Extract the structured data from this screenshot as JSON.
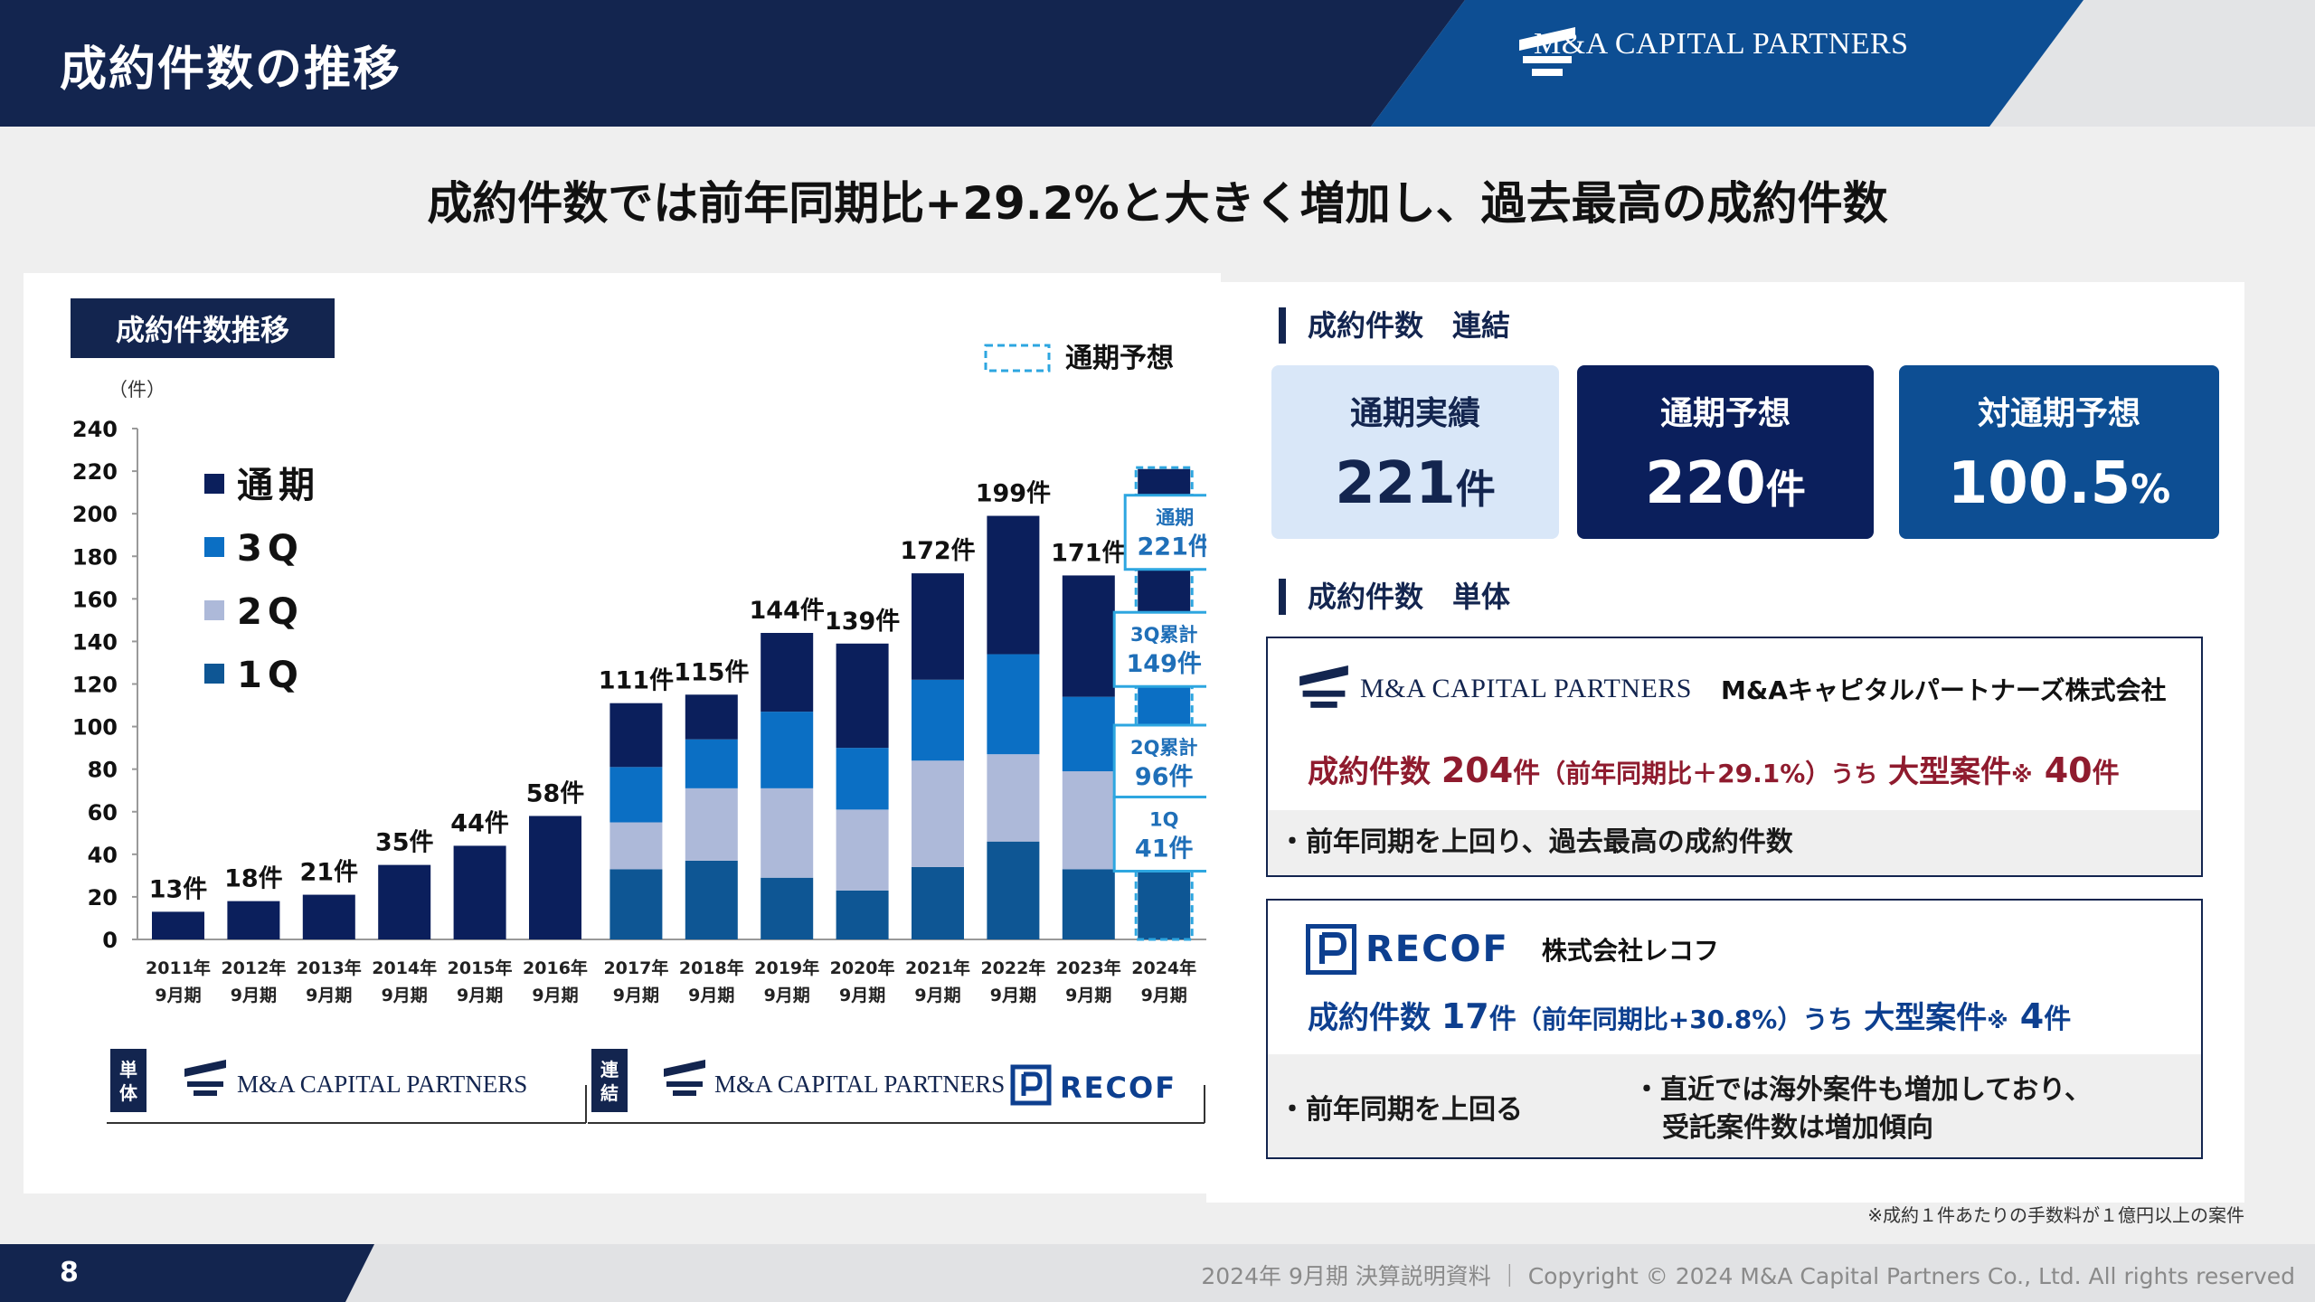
{
  "header": {
    "title": "成約件数の推移",
    "logo_text": "M&A CAPITAL PARTNERS"
  },
  "headline": "成約件数では前年同期比+29.2%と大きく増加し、過去最高の成約件数",
  "left": {
    "tag": "成約件数推移",
    "legend_forecast": "通期予想",
    "unit": "（件）",
    "legend": [
      "通期",
      "3Q",
      "2Q",
      "1Q"
    ],
    "bottom_single": "単体",
    "bottom_consolidated": "連結",
    "bottom_logo_mcp": "M&A CAPITAL PARTNERS",
    "bottom_logo_recof": "RECOF"
  },
  "chart_data": {
    "type": "bar",
    "stacked": true,
    "categories": [
      "2011年9月期",
      "2012年9月期",
      "2013年9月期",
      "2014年9月期",
      "2015年9月期",
      "2016年9月期",
      "2017年9月期",
      "2018年9月期",
      "2019年9月期",
      "2020年9月期",
      "2021年9月期",
      "2022年9月期",
      "2023年9月期",
      "2024年9月期"
    ],
    "cat_year": [
      "2011年",
      "2012年",
      "2013年",
      "2014年",
      "2015年",
      "2016年",
      "2017年",
      "2018年",
      "2019年",
      "2020年",
      "2021年",
      "2022年",
      "2023年",
      "2024年"
    ],
    "cat_period": [
      "9月期",
      "9月期",
      "9月期",
      "9月期",
      "9月期",
      "9月期",
      "9月期",
      "9月期",
      "9月期",
      "9月期",
      "9月期",
      "9月期",
      "9月期",
      "9月期"
    ],
    "series": [
      {
        "name": "1Q",
        "color": "#0e5694",
        "values": [
          0,
          0,
          0,
          0,
          0,
          0,
          33,
          37,
          29,
          23,
          34,
          46,
          33,
          41
        ]
      },
      {
        "name": "2Q",
        "color": "#adb9d9",
        "values": [
          0,
          0,
          0,
          0,
          0,
          0,
          22,
          34,
          42,
          38,
          50,
          41,
          46,
          55
        ]
      },
      {
        "name": "3Q",
        "color": "#0b6fc4",
        "values": [
          0,
          0,
          0,
          0,
          0,
          0,
          26,
          23,
          36,
          29,
          38,
          47,
          35,
          53
        ]
      },
      {
        "name": "通期",
        "color": "#0b1f5c",
        "values": [
          13,
          18,
          21,
          35,
          44,
          58,
          30,
          21,
          37,
          49,
          50,
          65,
          57,
          72
        ]
      }
    ],
    "totals": [
      13,
      18,
      21,
      35,
      44,
      58,
      111,
      115,
      144,
      139,
      172,
      199,
      171,
      221
    ],
    "total_labels": [
      "13件",
      "18件",
      "21件",
      "35件",
      "44件",
      "58件",
      "111件",
      "115件",
      "144件",
      "139件",
      "172件",
      "199件",
      "171件",
      ""
    ],
    "forecast": 220,
    "ylim": [
      0,
      240
    ],
    "yticks": [
      0,
      20,
      40,
      60,
      80,
      100,
      120,
      140,
      160,
      180,
      200,
      220,
      240
    ],
    "callouts": [
      {
        "t1": "通期",
        "t2": "221件"
      },
      {
        "t1": "3Q累計",
        "t2": "149件"
      },
      {
        "t1": "2Q累計",
        "t2": "96件"
      },
      {
        "t1": "1Q",
        "t2": "41件"
      }
    ]
  },
  "right": {
    "sec1": "成約件数　連結",
    "cards": [
      {
        "label": "通期実績",
        "value": "221",
        "unit": "件"
      },
      {
        "label": "通期予想",
        "value": "220",
        "unit": "件"
      },
      {
        "label": "対通期予想",
        "value": "100.5",
        "unit": "%"
      }
    ],
    "sec2": "成約件数　単体",
    "mcp": {
      "company": "M&Aキャピタルパートナーズ株式会社",
      "l_a": "成約件数 ",
      "l_b": "204",
      "l_c": "件",
      "l_d": "（前年同期比＋29.1%）",
      "l_e": "うち",
      "l_f": " 大型案件",
      "l_g": "※",
      "l_h": " 40",
      "l_i": "件",
      "bullet": "・前年同期を上回り、過去最高の成約件数"
    },
    "recof": {
      "logo": "RECOF",
      "company": "株式会社レコフ",
      "l_a": "成約件数 ",
      "l_b": "17",
      "l_c": "件",
      "l_d": "（前年同期比+30.8%）",
      "l_e": "うち",
      "l_f": " 大型案件",
      "l_g": "※",
      "l_h": " 4",
      "l_i": "件",
      "b1": "・前年同期を上回る",
      "b2a": "・直近では海外案件も増加しており、",
      "b2b": "受託案件数は増加傾向"
    }
  },
  "note": "※成約１件あたりの手数料が１億円以上の案件",
  "footer": {
    "page": "8",
    "copyright": "2024年 9月期 決算説明資料 ｜ Copyright © 2024 M&A Capital Partners Co., Ltd. All rights reserved"
  }
}
